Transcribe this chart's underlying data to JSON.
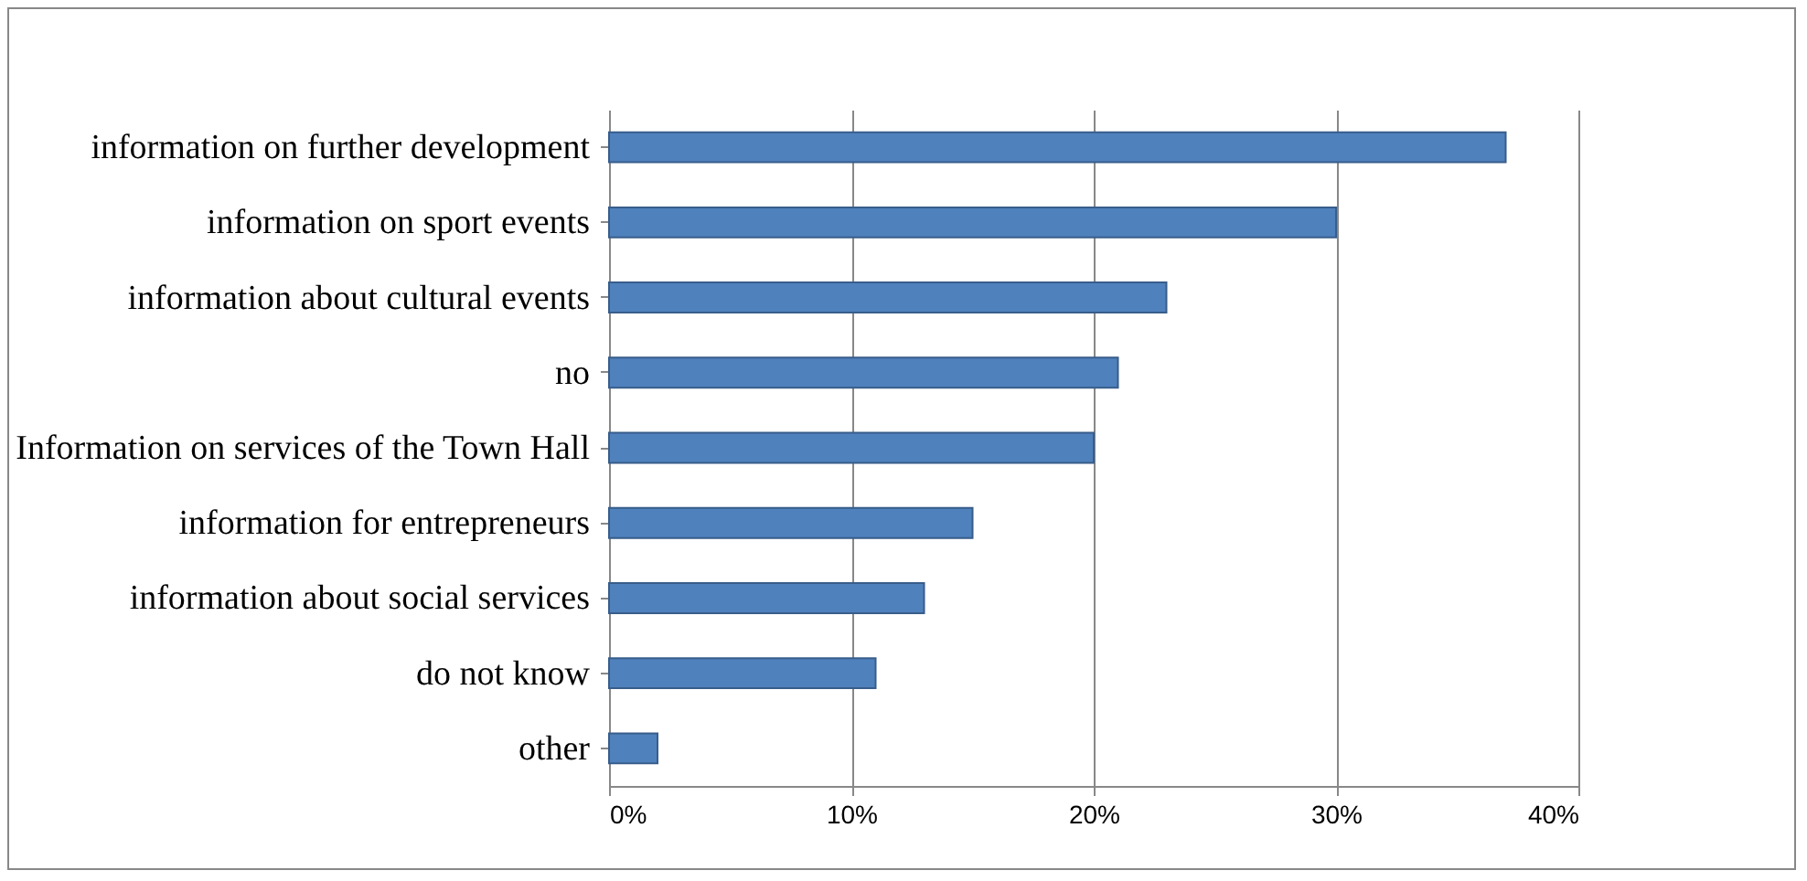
{
  "chart_data": {
    "type": "bar",
    "orientation": "horizontal",
    "categories": [
      "information on further development",
      "information on sport events",
      "information about cultural events",
      "no",
      "Information on services of the Town Hall",
      "information for entrepreneurs",
      "information about social services",
      "do not know",
      "other"
    ],
    "values": [
      37,
      30,
      23,
      21,
      20,
      15,
      13,
      11,
      2
    ],
    "color": "#4f81bd",
    "xlim": [
      0,
      40
    ],
    "xticks": [
      {
        "value": 0,
        "label": "0%"
      },
      {
        "value": 10,
        "label": "10%"
      },
      {
        "value": 20,
        "label": "20%"
      },
      {
        "value": 30,
        "label": "30%"
      },
      {
        "value": 40,
        "label": "40%"
      }
    ],
    "grid": "x"
  }
}
